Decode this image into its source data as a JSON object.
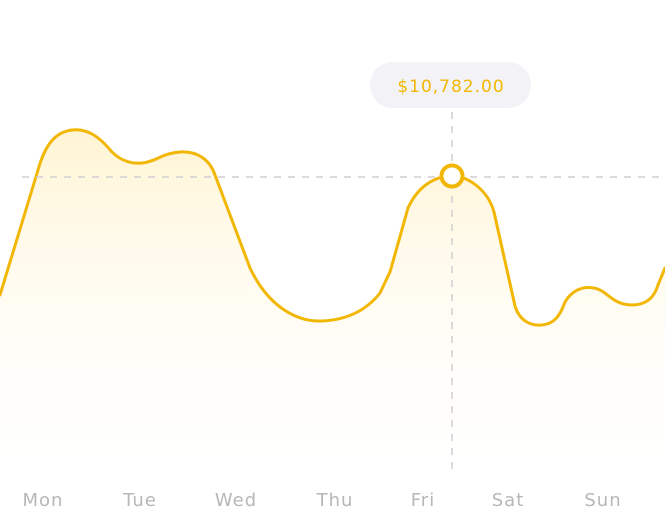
{
  "chart_data": {
    "type": "area",
    "categories": [
      "Mon",
      "Tue",
      "Wed",
      "Thu",
      "Fri",
      "Sat",
      "Sun"
    ],
    "title": "",
    "xlabel": "",
    "ylabel": "",
    "grid": false,
    "selected_point": {
      "category": "Fri",
      "value": 10782.0,
      "label": "$10,782.00"
    }
  },
  "colors": {
    "line": "#f2b705",
    "fill": "#fff6da",
    "tooltip_bg": "#f2f2f7",
    "axis_text": "#b7b7b7",
    "crosshair": "#cfcfcf"
  }
}
